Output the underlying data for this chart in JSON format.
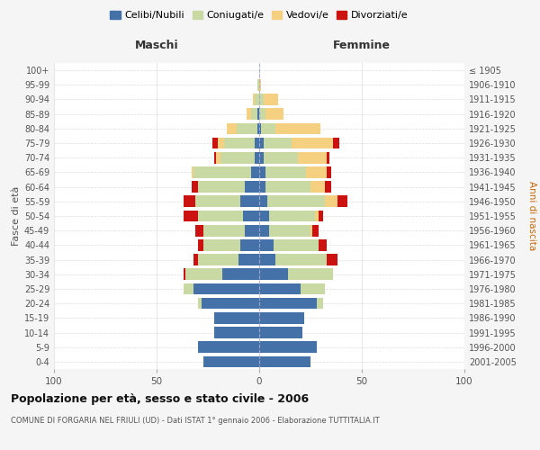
{
  "age_groups": [
    "0-4",
    "5-9",
    "10-14",
    "15-19",
    "20-24",
    "25-29",
    "30-34",
    "35-39",
    "40-44",
    "45-49",
    "50-54",
    "55-59",
    "60-64",
    "65-69",
    "70-74",
    "75-79",
    "80-84",
    "85-89",
    "90-94",
    "95-99",
    "100+"
  ],
  "birth_years": [
    "2001-2005",
    "1996-2000",
    "1991-1995",
    "1986-1990",
    "1981-1985",
    "1976-1980",
    "1971-1975",
    "1966-1970",
    "1961-1965",
    "1956-1960",
    "1951-1955",
    "1946-1950",
    "1941-1945",
    "1936-1940",
    "1931-1935",
    "1926-1930",
    "1921-1925",
    "1916-1920",
    "1911-1915",
    "1906-1910",
    "≤ 1905"
  ],
  "males": {
    "celibi": [
      27,
      30,
      22,
      22,
      28,
      32,
      18,
      10,
      9,
      7,
      8,
      9,
      7,
      4,
      2,
      2,
      1,
      1,
      0,
      0,
      0
    ],
    "coniugati": [
      0,
      0,
      0,
      0,
      2,
      5,
      18,
      20,
      18,
      20,
      22,
      22,
      23,
      28,
      17,
      15,
      10,
      3,
      2,
      1,
      0
    ],
    "vedovi": [
      0,
      0,
      0,
      0,
      0,
      0,
      0,
      0,
      0,
      0,
      0,
      0,
      0,
      1,
      2,
      3,
      5,
      2,
      1,
      0,
      0
    ],
    "divorziati": [
      0,
      0,
      0,
      0,
      0,
      0,
      1,
      2,
      3,
      4,
      7,
      6,
      3,
      0,
      1,
      3,
      0,
      0,
      0,
      0,
      0
    ]
  },
  "females": {
    "nubili": [
      25,
      28,
      21,
      22,
      28,
      20,
      14,
      8,
      7,
      5,
      5,
      4,
      3,
      3,
      2,
      2,
      1,
      0,
      0,
      0,
      0
    ],
    "coniugate": [
      0,
      0,
      0,
      0,
      3,
      12,
      22,
      25,
      22,
      20,
      22,
      28,
      22,
      20,
      17,
      14,
      7,
      3,
      2,
      0,
      0
    ],
    "vedove": [
      0,
      0,
      0,
      0,
      0,
      0,
      0,
      0,
      0,
      1,
      2,
      6,
      7,
      10,
      14,
      20,
      22,
      9,
      7,
      1,
      0
    ],
    "divorziate": [
      0,
      0,
      0,
      0,
      0,
      0,
      0,
      5,
      4,
      3,
      2,
      5,
      3,
      2,
      1,
      3,
      0,
      0,
      0,
      0,
      0
    ]
  },
  "colors": {
    "celibi_nubili": "#4472a8",
    "coniugati": "#c8d9a4",
    "vedovi": "#f5d080",
    "divorziati": "#cc1111"
  },
  "xlim": 100,
  "title": "Popolazione per età, sesso e stato civile - 2006",
  "subtitle": "COMUNE DI FORGARIA NEL FRIULI (UD) - Dati ISTAT 1° gennaio 2006 - Elaborazione TUTTITALIA.IT",
  "ylabel_left": "Fasce di età",
  "ylabel_right": "Anni di nascita",
  "xlabel_left": "Maschi",
  "xlabel_right": "Femmine",
  "legend_labels": [
    "Celibi/Nubili",
    "Coniugati/e",
    "Vedovi/e",
    "Divorziati/e"
  ],
  "background_color": "#f5f5f5",
  "plot_background": "#ffffff"
}
